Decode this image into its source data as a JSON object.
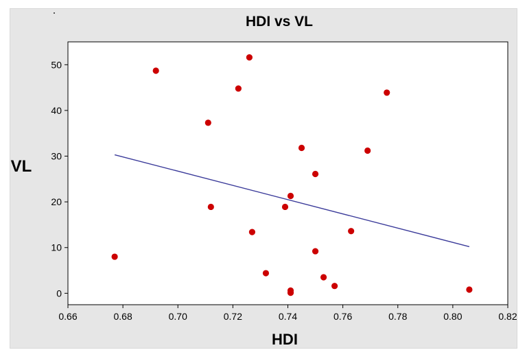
{
  "chart_data": {
    "type": "scatter",
    "title": "HDI vs VL",
    "xlabel": "HDI",
    "ylabel": "VL",
    "xlim": [
      0.66,
      0.82
    ],
    "ylim": [
      -2.5,
      55
    ],
    "xticks": [
      "0.66",
      "0.68",
      "0.70",
      "0.72",
      "0.74",
      "0.76",
      "0.78",
      "0.80",
      "0.82"
    ],
    "yticks": [
      "0",
      "10",
      "20",
      "30",
      "40",
      "50"
    ],
    "grid": false,
    "legend": "none",
    "series": [
      {
        "points": [
          {
            "x": 0.677,
            "y": 8.0
          },
          {
            "x": 0.692,
            "y": 48.7
          },
          {
            "x": 0.711,
            "y": 37.3
          },
          {
            "x": 0.712,
            "y": 18.9
          },
          {
            "x": 0.722,
            "y": 44.8
          },
          {
            "x": 0.726,
            "y": 51.6
          },
          {
            "x": 0.727,
            "y": 13.4
          },
          {
            "x": 0.732,
            "y": 4.4
          },
          {
            "x": 0.739,
            "y": 18.9
          },
          {
            "x": 0.741,
            "y": 21.3
          },
          {
            "x": 0.741,
            "y": 0.6
          },
          {
            "x": 0.741,
            "y": 0.1
          },
          {
            "x": 0.745,
            "y": 31.8
          },
          {
            "x": 0.75,
            "y": 26.1
          },
          {
            "x": 0.75,
            "y": 9.2
          },
          {
            "x": 0.753,
            "y": 3.5
          },
          {
            "x": 0.757,
            "y": 1.6
          },
          {
            "x": 0.763,
            "y": 13.6
          },
          {
            "x": 0.769,
            "y": 31.2
          },
          {
            "x": 0.776,
            "y": 43.9
          },
          {
            "x": 0.806,
            "y": 0.8
          }
        ]
      }
    ],
    "fit_line": {
      "x": [
        0.677,
        0.806
      ],
      "y": [
        30.3,
        10.2
      ]
    },
    "colors": {
      "points": "#cc0000",
      "fit_line": "#3b3b9a",
      "panel": "#e6e6e6",
      "plot_area": "#ffffff"
    }
  }
}
